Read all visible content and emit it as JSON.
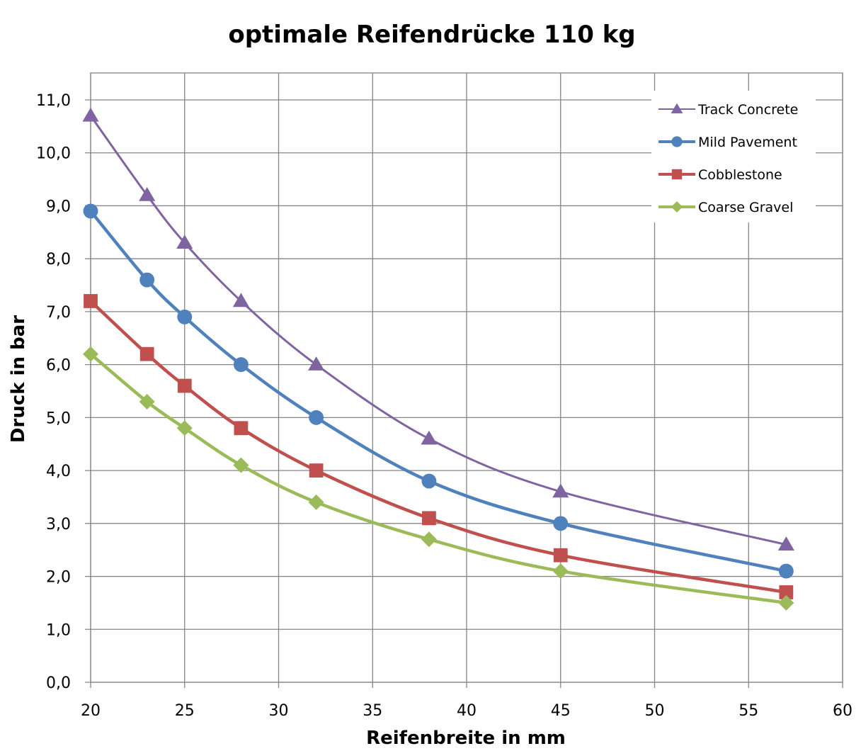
{
  "chart_data": {
    "type": "line",
    "title": "optimale Reifendrücke 110 kg",
    "xlabel": "Reifenbreite in mm",
    "ylabel": "Druck in bar",
    "xlim": [
      20,
      60
    ],
    "ylim": [
      0,
      11
    ],
    "xticks": [
      20,
      25,
      30,
      35,
      40,
      45,
      50,
      55,
      60
    ],
    "yticks": [
      0,
      1,
      2,
      3,
      4,
      5,
      6,
      7,
      8,
      9,
      10,
      11
    ],
    "ytick_labels": [
      "0,0",
      "1,0",
      "2,0",
      "3,0",
      "4,0",
      "5,0",
      "6,0",
      "7,0",
      "8,0",
      "9,0",
      "10,0",
      "11,0"
    ],
    "xtick_labels": [
      "20",
      "25",
      "30",
      "35",
      "40",
      "45",
      "50",
      "55",
      "60"
    ],
    "grid": true,
    "legend_position": "top-right",
    "smooth": true,
    "x": [
      20,
      23,
      25,
      28,
      32,
      38,
      45,
      57
    ],
    "series": [
      {
        "name": "Track Concrete",
        "color": "#8064a2",
        "marker": "triangle",
        "values": [
          10.7,
          9.2,
          8.3,
          7.2,
          6.0,
          4.6,
          3.6,
          2.6
        ]
      },
      {
        "name": "Mild Pavement",
        "color": "#4f81bd",
        "marker": "circle",
        "values": [
          8.9,
          7.6,
          6.9,
          6.0,
          5.0,
          3.8,
          3.0,
          2.1
        ]
      },
      {
        "name": "Cobblestone",
        "color": "#c0504d",
        "marker": "square",
        "values": [
          7.2,
          6.2,
          5.6,
          4.8,
          4.0,
          3.1,
          2.4,
          1.7
        ]
      },
      {
        "name": "Coarse Gravel",
        "color": "#9bbb59",
        "marker": "diamond",
        "values": [
          6.2,
          5.3,
          4.8,
          4.1,
          3.4,
          2.7,
          2.1,
          1.5
        ]
      }
    ]
  }
}
